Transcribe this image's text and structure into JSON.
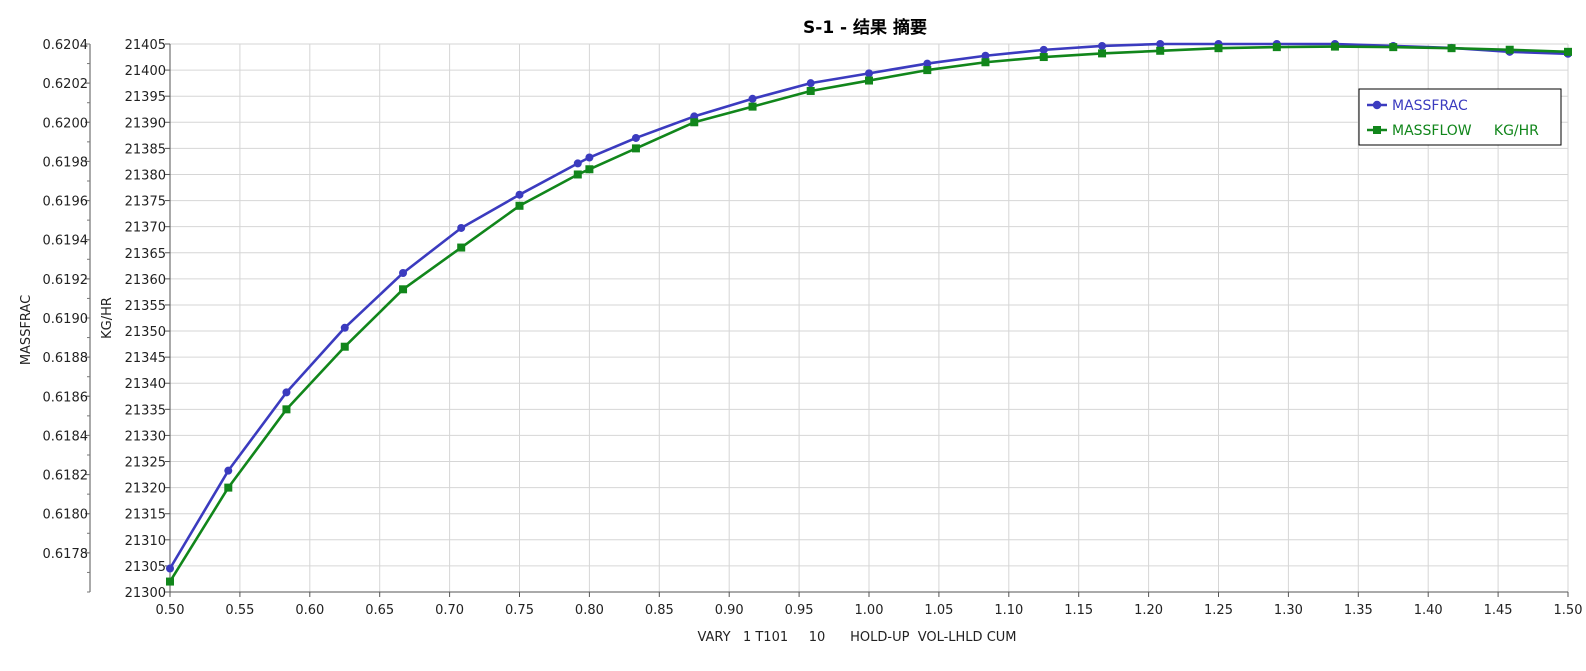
{
  "chart_data": {
    "type": "line",
    "title": "S-1 - 结果 摘要",
    "xlabel": "VARY   1 T101     10      HOLD-UP  VOL-LHLD CUM",
    "y1label": "MASSFRAC",
    "y2label": "KG/HR",
    "xlim": [
      0.5,
      1.5
    ],
    "x_ticks": [
      "0.50",
      "0.55",
      "0.60",
      "0.65",
      "0.70",
      "0.75",
      "0.80",
      "0.85",
      "0.90",
      "0.95",
      "1.00",
      "1.05",
      "1.10",
      "1.15",
      "1.20",
      "1.25",
      "1.30",
      "1.35",
      "1.40",
      "1.45",
      "1.50"
    ],
    "y1lim": [
      0.6176,
      0.6204
    ],
    "y1_ticks": [
      "0.6178",
      "0.6180",
      "0.6182",
      "0.6184",
      "0.6186",
      "0.6188",
      "0.6190",
      "0.6192",
      "0.6194",
      "0.6196",
      "0.6198",
      "0.6200",
      "0.6202",
      "0.6204"
    ],
    "y2lim": [
      21300,
      21405
    ],
    "y2_ticks": [
      "21300",
      "21305",
      "21310",
      "21315",
      "21320",
      "21325",
      "21330",
      "21335",
      "21340",
      "21345",
      "21350",
      "21355",
      "21360",
      "21365",
      "21370",
      "21375",
      "21380",
      "21385",
      "21390",
      "21395",
      "21400",
      "21405"
    ],
    "grid": true,
    "legend_position": "top-right",
    "series": [
      {
        "name": "MASSFRAC",
        "axis": "left",
        "color": "#3b3bbf",
        "marker": "circle",
        "x": [
          0.5,
          0.5417,
          0.5833,
          0.625,
          0.6667,
          0.7083,
          0.75,
          0.7917,
          0.8,
          0.8333,
          0.875,
          0.9167,
          0.9583,
          1.0,
          1.0417,
          1.0833,
          1.125,
          1.1667,
          1.2083,
          1.25,
          1.2917,
          1.3333,
          1.375,
          1.4167,
          1.4583,
          1.5
        ],
        "values": [
          0.61772,
          0.61822,
          0.61862,
          0.61895,
          0.61923,
          0.61946,
          0.61963,
          0.61979,
          0.61982,
          0.61992,
          0.62003,
          0.62012,
          0.6202,
          0.62025,
          0.6203,
          0.62034,
          0.62037,
          0.62039,
          0.6204,
          0.6204,
          0.6204,
          0.6204,
          0.62039,
          0.62038,
          0.62036,
          0.62035
        ]
      },
      {
        "name": "MASSFLOW     KG/HR",
        "axis": "right",
        "color": "#11861b",
        "marker": "square",
        "x": [
          0.5,
          0.5417,
          0.5833,
          0.625,
          0.6667,
          0.7083,
          0.75,
          0.7917,
          0.8,
          0.8333,
          0.875,
          0.9167,
          0.9583,
          1.0,
          1.0417,
          1.0833,
          1.125,
          1.1667,
          1.2083,
          1.25,
          1.2917,
          1.3333,
          1.375,
          1.4167,
          1.4583,
          1.5
        ],
        "values": [
          21302,
          21320,
          21335,
          21347,
          21358,
          21366,
          21374,
          21380,
          21381,
          21385,
          21390,
          21393,
          21396,
          21398,
          21400,
          21401.5,
          21402.5,
          21403.2,
          21403.7,
          21404.2,
          21404.4,
          21404.5,
          21404.4,
          21404.2,
          21403.9,
          21403.5
        ]
      }
    ]
  }
}
